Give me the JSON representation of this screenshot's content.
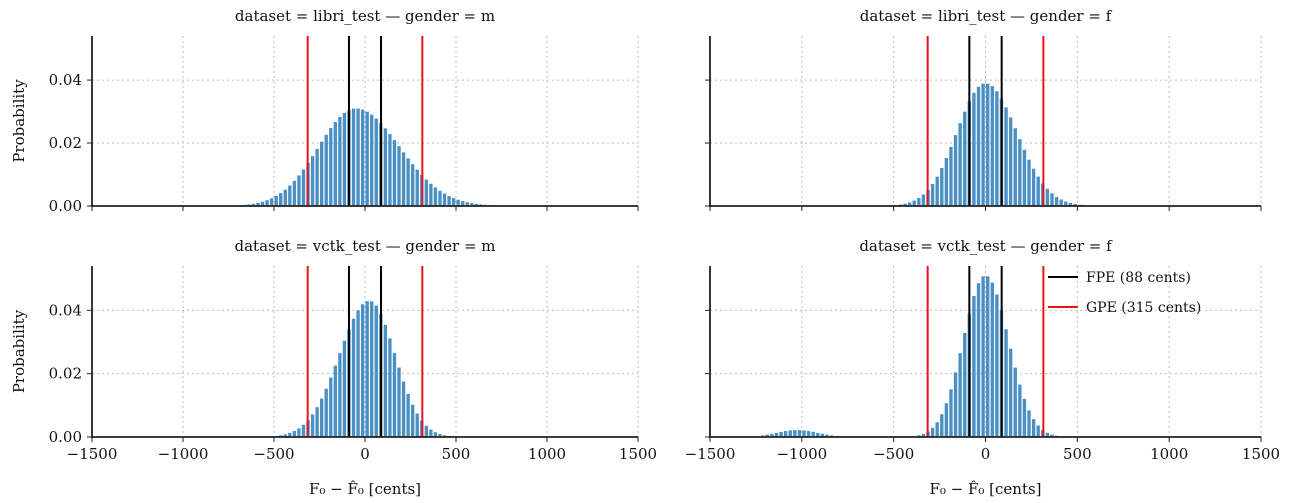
{
  "chart_data": {
    "type": "bar",
    "xlabel": "F₀ − F̂₀ [cents]",
    "ylabel": "Probability",
    "xlim": [
      -1500,
      1500
    ],
    "ylim": [
      0,
      0.054
    ],
    "xticks": [
      -1500,
      -1000,
      -500,
      0,
      500,
      1000,
      1500
    ],
    "xtick_labels": [
      "−1500",
      "−1000",
      "−500",
      "0",
      "500",
      "1000",
      "1500"
    ],
    "yticks": [
      0,
      0.02,
      0.04
    ],
    "ytick_labels": [
      "0.00",
      "0.02",
      "0.04"
    ],
    "grid": true,
    "bin_width": 25,
    "bar_color": "#4a90c4",
    "fpe_color": "#000000",
    "gpe_color": "#e8141b",
    "fpe_cents": 88,
    "gpe_cents": 315,
    "legend": {
      "placement": "top-right of bottom-right panel",
      "entries": [
        {
          "label": "FPE (88 cents)",
          "color": "#000000"
        },
        {
          "label": "GPE (315 cents)",
          "color": "#e8141b"
        }
      ]
    },
    "panels": [
      {
        "title": "dataset = libri_test — gender = m",
        "distribution": {
          "peak": 0.031,
          "mode": -50,
          "sigma_left": 205,
          "sigma_right": 240,
          "cutoff_left": -950,
          "cutoff_right": 1000
        }
      },
      {
        "title": "dataset = libri_test — gender = f",
        "distribution": {
          "peak": 0.039,
          "mode": 0,
          "sigma_left": 155,
          "sigma_right": 170,
          "cutoff_left": -950,
          "cutoff_right": 875
        }
      },
      {
        "title": "dataset = vctk_test — gender = m",
        "distribution": {
          "peak": 0.043,
          "mode": 25,
          "sigma_left": 165,
          "sigma_right": 140,
          "cutoff_left": -925,
          "cutoff_right": 650
        }
      },
      {
        "title": "dataset = vctk_test — gender = f",
        "distribution": {
          "peak": 0.051,
          "mode": 0,
          "sigma_left": 120,
          "sigma_right": 125,
          "cutoff_left": -375,
          "cutoff_right": 625,
          "secondary": {
            "peak": 0.0022,
            "mode": -1025,
            "sigma": 110,
            "from": -1225,
            "to": -725
          }
        }
      }
    ]
  }
}
